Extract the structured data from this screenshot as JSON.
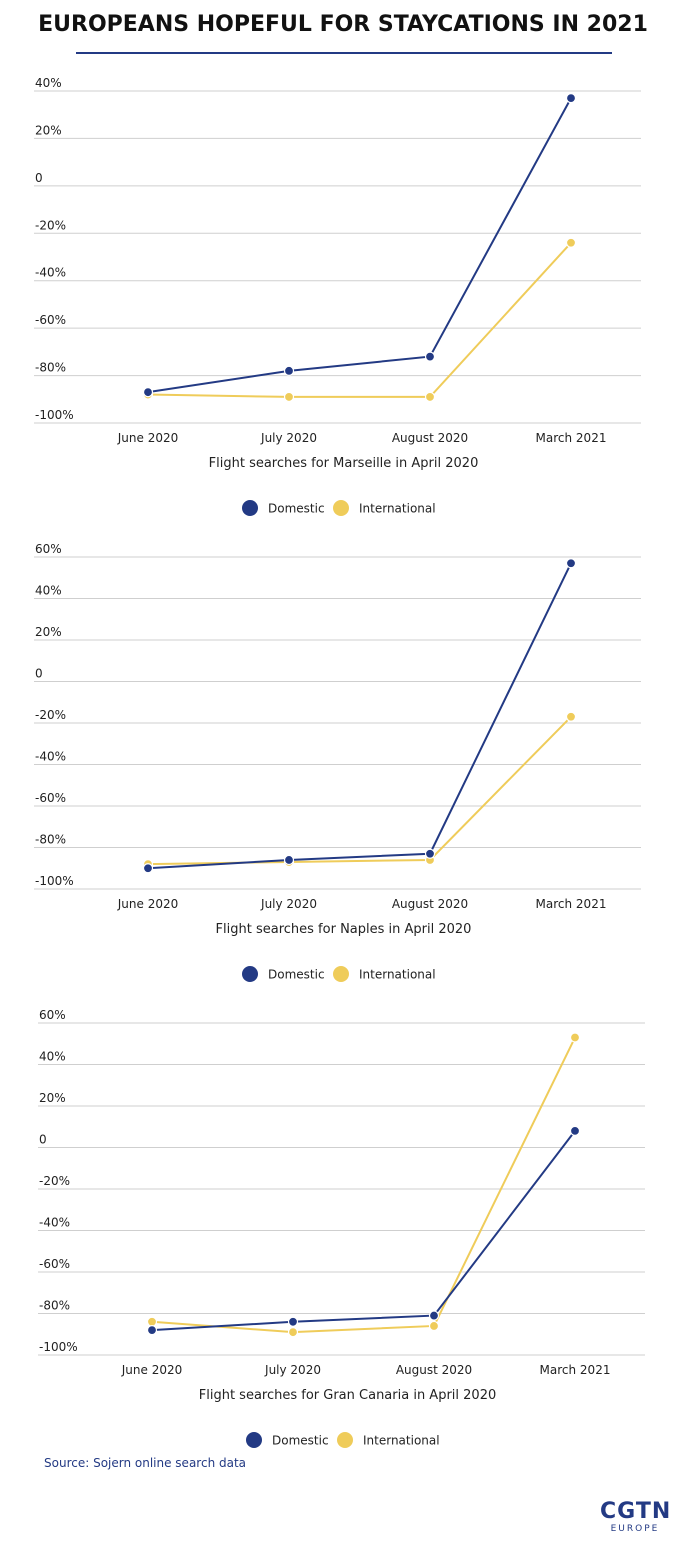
{
  "title": "EUROPEANS HOPEFUL FOR STAYCATIONS IN 2021",
  "source": "Source: Sojern online search data",
  "logo": {
    "main": "CGTN",
    "sub": "EUROPE"
  },
  "colors": {
    "domestic": "#233a84",
    "international": "#efcc5a",
    "grid": "#cfcfcf",
    "source_text": "#233a84",
    "rule": "#233a84"
  },
  "chart_data": [
    {
      "type": "line",
      "xlabel": "Flight searches for Marseille in April 2020",
      "categories": [
        "June 2020",
        "July 2020",
        "August 2020",
        "March 2021"
      ],
      "y_ticks": [
        40,
        20,
        0,
        -20,
        -40,
        -60,
        -80,
        -100
      ],
      "y_tick_labels": [
        "40%",
        "20%",
        "0",
        "-20%",
        "-40%",
        "-60%",
        "-80%",
        "-100%"
      ],
      "ylim": [
        -100,
        40
      ],
      "grid": true,
      "legend": "bottom",
      "series": [
        {
          "name": "Domestic",
          "values": [
            -87,
            -78,
            -72,
            37
          ]
        },
        {
          "name": "International",
          "values": [
            -88,
            -89,
            -89,
            -24
          ]
        }
      ]
    },
    {
      "type": "line",
      "xlabel": "Flight searches for Naples in April 2020",
      "categories": [
        "June 2020",
        "July 2020",
        "August 2020",
        "March 2021"
      ],
      "y_ticks": [
        60,
        40,
        20,
        0,
        -20,
        -40,
        -60,
        -80,
        -100
      ],
      "y_tick_labels": [
        "60%",
        "40%",
        "20%",
        "0",
        "-20%",
        "-40%",
        "-60%",
        "-80%",
        "-100%"
      ],
      "ylim": [
        -100,
        60
      ],
      "grid": true,
      "legend": "bottom",
      "series": [
        {
          "name": "Domestic",
          "values": [
            -90,
            -86,
            -83,
            57
          ]
        },
        {
          "name": "International",
          "values": [
            -88,
            -87,
            -86,
            -17
          ]
        }
      ]
    },
    {
      "type": "line",
      "xlabel": "Flight searches for Gran Canaria in April 2020",
      "categories": [
        "June 2020",
        "July 2020",
        "August 2020",
        "March 2021"
      ],
      "y_ticks": [
        60,
        40,
        20,
        0,
        -20,
        -40,
        -60,
        -80,
        -100
      ],
      "y_tick_labels": [
        "60%",
        "40%",
        "20%",
        "0",
        "-20%",
        "-40%",
        "-60%",
        "-80%",
        "-100%"
      ],
      "ylim": [
        -100,
        60
      ],
      "grid": true,
      "legend": "bottom",
      "series": [
        {
          "name": "Domestic",
          "values": [
            -88,
            -84,
            -81,
            8
          ]
        },
        {
          "name": "International",
          "values": [
            -84,
            -89,
            -86,
            53
          ]
        }
      ]
    }
  ]
}
